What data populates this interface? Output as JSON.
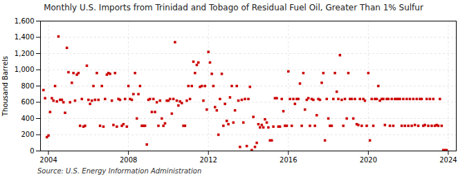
{
  "chart_data": {
    "type": "scatter",
    "title": "Monthly U.S. Imports from Trinidad and Tobago of Residual Fuel Oil, Greater Than 1% Sulfur",
    "ylabel": "Thousand Barrels",
    "source": "Source: U.S. Energy Information Administration",
    "color": "#CC0000",
    "marker": "square",
    "grid": true,
    "xlim": [
      2003.6,
      2024.4
    ],
    "xticks": [
      2004,
      2008,
      2012,
      2016,
      2020,
      2024
    ],
    "ylim": [
      0,
      1600
    ],
    "yticks": [
      0,
      200,
      400,
      600,
      800,
      {
        "value": 1000,
        "label": "1,000"
      },
      {
        "value": 1200,
        "label": "1,200"
      },
      {
        "value": 1400,
        "label": "1,400"
      },
      {
        "value": 1600,
        "label": "1,600"
      }
    ],
    "x": [
      2003.75,
      2003.83,
      2003.92,
      2004.0,
      2004.08,
      2004.17,
      2004.25,
      2004.33,
      2004.42,
      2004.5,
      2004.58,
      2004.67,
      2004.75,
      2004.83,
      2004.92,
      2005.0,
      2005.08,
      2005.17,
      2005.25,
      2005.33,
      2005.42,
      2005.5,
      2005.58,
      2005.67,
      2005.75,
      2005.83,
      2005.92,
      2006.0,
      2006.08,
      2006.17,
      2006.25,
      2006.33,
      2006.42,
      2006.5,
      2006.58,
      2006.67,
      2006.75,
      2006.83,
      2006.92,
      2007.0,
      2007.08,
      2007.17,
      2007.25,
      2007.33,
      2007.42,
      2007.5,
      2007.58,
      2007.67,
      2007.75,
      2007.83,
      2007.92,
      2008.0,
      2008.08,
      2008.17,
      2008.25,
      2008.33,
      2008.42,
      2008.5,
      2008.58,
      2008.67,
      2008.75,
      2008.83,
      2008.92,
      2009.0,
      2009.08,
      2009.17,
      2009.25,
      2009.33,
      2009.42,
      2009.5,
      2009.58,
      2009.67,
      2009.75,
      2009.83,
      2009.92,
      2010.0,
      2010.08,
      2010.17,
      2010.25,
      2010.33,
      2010.42,
      2010.5,
      2010.58,
      2010.67,
      2010.75,
      2010.83,
      2010.92,
      2011.0,
      2011.08,
      2011.17,
      2011.25,
      2011.33,
      2011.42,
      2011.5,
      2011.58,
      2011.67,
      2011.75,
      2011.83,
      2011.92,
      2012.0,
      2012.08,
      2012.17,
      2012.25,
      2012.33,
      2012.42,
      2012.5,
      2012.58,
      2012.67,
      2012.75,
      2012.83,
      2012.92,
      2013.0,
      2013.08,
      2013.17,
      2013.25,
      2013.33,
      2013.42,
      2013.5,
      2013.58,
      2013.67,
      2013.75,
      2013.83,
      2013.92,
      2014.0,
      2014.08,
      2014.17,
      2014.25,
      2014.33,
      2014.42,
      2014.5,
      2014.58,
      2014.67,
      2014.75,
      2014.83,
      2014.92,
      2015.0,
      2015.08,
      2015.17,
      2015.25,
      2015.33,
      2015.42,
      2015.5,
      2015.58,
      2015.67,
      2015.75,
      2015.83,
      2015.92,
      2016.0,
      2016.08,
      2016.17,
      2016.25,
      2016.33,
      2016.42,
      2016.5,
      2016.58,
      2016.67,
      2016.75,
      2016.83,
      2016.92,
      2017.0,
      2017.08,
      2017.17,
      2017.25,
      2017.33,
      2017.42,
      2017.5,
      2017.58,
      2017.67,
      2017.75,
      2017.83,
      2017.92,
      2018.0,
      2018.08,
      2018.17,
      2018.25,
      2018.33,
      2018.42,
      2018.5,
      2018.58,
      2018.67,
      2018.75,
      2018.83,
      2018.92,
      2019.0,
      2019.08,
      2019.17,
      2019.25,
      2019.33,
      2019.42,
      2019.5,
      2019.58,
      2019.67,
      2019.75,
      2019.83,
      2019.92,
      2020.0,
      2020.08,
      2020.17,
      2020.25,
      2020.33,
      2020.42,
      2020.5,
      2020.58,
      2020.67,
      2020.75,
      2020.83,
      2020.92,
      2021.0,
      2021.08,
      2021.17,
      2021.25,
      2021.33,
      2021.42,
      2021.5,
      2021.58,
      2021.67,
      2021.75,
      2021.83,
      2021.92,
      2022.0,
      2022.08,
      2022.17,
      2022.25,
      2022.33,
      2022.42,
      2022.5,
      2022.58,
      2022.67,
      2022.75,
      2022.83,
      2022.92,
      2023.0,
      2023.08,
      2023.17,
      2023.25,
      2023.33,
      2023.42,
      2023.5,
      2023.58,
      2023.67,
      2023.75,
      2023.83,
      2023.92
    ],
    "values": [
      750,
      650,
      170,
      190,
      480,
      650,
      620,
      800,
      610,
      1410,
      630,
      630,
      600,
      470,
      1270,
      970,
      600,
      840,
      960,
      620,
      940,
      960,
      310,
      640,
      300,
      310,
      1050,
      630,
      580,
      620,
      800,
      630,
      960,
      630,
      310,
      800,
      300,
      640,
      940,
      960,
      950,
      620,
      320,
      960,
      300,
      640,
      630,
      310,
      330,
      640,
      300,
      800,
      640,
      630,
      700,
      960,
      400,
      700,
      800,
      310,
      310,
      310,
      80,
      630,
      640,
      480,
      640,
      480,
      600,
      310,
      620,
      400,
      310,
      340,
      620,
      620,
      640,
      460,
      640,
      1340,
      620,
      560,
      610,
      590,
      310,
      310,
      620,
      800,
      640,
      800,
      1100,
      960,
      1060,
      1090,
      790,
      800,
      620,
      800,
      510,
      1220,
      1090,
      950,
      800,
      540,
      500,
      200,
      640,
      950,
      310,
      580,
      370,
      330,
      660,
      800,
      350,
      500,
      800,
      620,
      50,
      630,
      350,
      640,
      60,
      640,
      790,
      10,
      420,
      50,
      100,
      330,
      290,
      320,
      290,
      390,
      350,
      290,
      130,
      130,
      300,
      650,
      650,
      300,
      300,
      640,
      490,
      310,
      310,
      980,
      640,
      310,
      640,
      580,
      640,
      640,
      830,
      310,
      960,
      510,
      630,
      650,
      310,
      640,
      630,
      310,
      440,
      640,
      630,
      840,
      960,
      130,
      640,
      400,
      310,
      310,
      640,
      960,
      730,
      640,
      1180,
      630,
      310,
      640,
      400,
      960,
      640,
      640,
      400,
      640,
      330,
      320,
      640,
      310,
      640,
      620,
      310,
      960,
      130,
      640,
      310,
      640,
      640,
      800,
      620,
      640,
      640,
      320,
      640,
      640,
      310,
      640,
      310,
      640,
      640,
      640,
      640,
      310,
      640,
      310,
      640,
      310,
      640,
      310,
      640,
      320,
      640,
      310,
      640,
      640,
      310,
      320,
      640,
      310,
      640,
      310,
      640,
      310,
      320,
      310,
      640,
      310,
      10,
      10,
      10
    ]
  }
}
